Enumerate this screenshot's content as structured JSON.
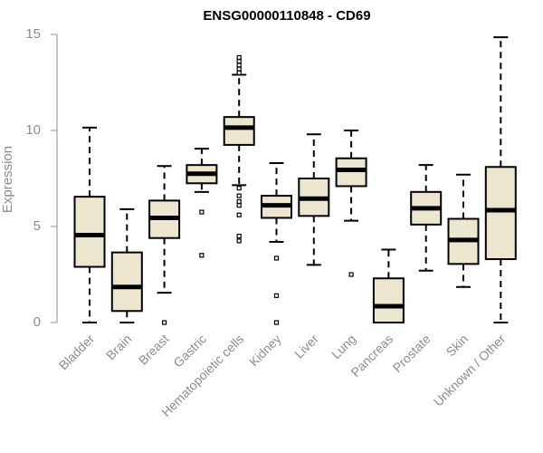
{
  "colors": {
    "box_fill": "#ede6cf",
    "box_stroke": "#000000",
    "axis": "#8c8c8c"
  },
  "chart_data": {
    "type": "boxplot",
    "title": "ENSG00000110848 - CD69",
    "xlabel": "",
    "ylabel": "Expression",
    "ylim": [
      0,
      15
    ],
    "yticks": [
      0,
      5,
      10,
      15
    ],
    "categories": [
      "Bladder",
      "Brain",
      "Breast",
      "Gastric",
      "Hematopoietic cells",
      "Kidney",
      "Liver",
      "Lung",
      "Pancreas",
      "Prostate",
      "Skin",
      "Unknown / Other"
    ],
    "boxes": [
      {
        "name": "Bladder",
        "whisker_low": 0.0,
        "q1": 2.9,
        "median": 4.55,
        "q3": 6.55,
        "whisker_high": 10.15,
        "outliers": []
      },
      {
        "name": "Brain",
        "whisker_low": 0.0,
        "q1": 0.6,
        "median": 1.85,
        "q3": 3.65,
        "whisker_high": 5.9,
        "outliers": []
      },
      {
        "name": "Breast",
        "whisker_low": 1.55,
        "q1": 4.4,
        "median": 5.45,
        "q3": 6.35,
        "whisker_high": 8.15,
        "outliers": [
          0.0
        ]
      },
      {
        "name": "Gastric",
        "whisker_low": 6.8,
        "q1": 7.25,
        "median": 7.75,
        "q3": 8.2,
        "whisker_high": 9.05,
        "outliers": [
          5.75,
          3.5
        ]
      },
      {
        "name": "Hematopoietic cells",
        "whisker_low": 7.15,
        "q1": 9.25,
        "median": 10.15,
        "q3": 10.7,
        "whisker_high": 12.9,
        "outliers": [
          13.8,
          13.6,
          13.4,
          13.2,
          13.0,
          7.0,
          6.6,
          6.3,
          6.1,
          5.6,
          4.5,
          4.25
        ]
      },
      {
        "name": "Kidney",
        "whisker_low": 4.2,
        "q1": 5.45,
        "median": 6.1,
        "q3": 6.6,
        "whisker_high": 8.3,
        "outliers": [
          3.35,
          1.4,
          0.0
        ]
      },
      {
        "name": "Liver",
        "whisker_low": 3.0,
        "q1": 5.55,
        "median": 6.45,
        "q3": 7.5,
        "whisker_high": 9.8,
        "outliers": []
      },
      {
        "name": "Lung",
        "whisker_low": 5.3,
        "q1": 7.1,
        "median": 7.95,
        "q3": 8.55,
        "whisker_high": 10.0,
        "outliers": [
          2.5
        ]
      },
      {
        "name": "Pancreas",
        "whisker_low": 0.0,
        "q1": 0.0,
        "median": 0.85,
        "q3": 2.3,
        "whisker_high": 3.8,
        "outliers": []
      },
      {
        "name": "Prostate",
        "whisker_low": 2.7,
        "q1": 5.1,
        "median": 5.95,
        "q3": 6.8,
        "whisker_high": 8.2,
        "outliers": []
      },
      {
        "name": "Skin",
        "whisker_low": 1.85,
        "q1": 3.05,
        "median": 4.3,
        "q3": 5.4,
        "whisker_high": 7.7,
        "outliers": []
      },
      {
        "name": "Unknown / Other",
        "whisker_low": 0.0,
        "q1": 3.3,
        "median": 5.85,
        "q3": 8.1,
        "whisker_high": 14.85,
        "outliers": []
      }
    ]
  }
}
